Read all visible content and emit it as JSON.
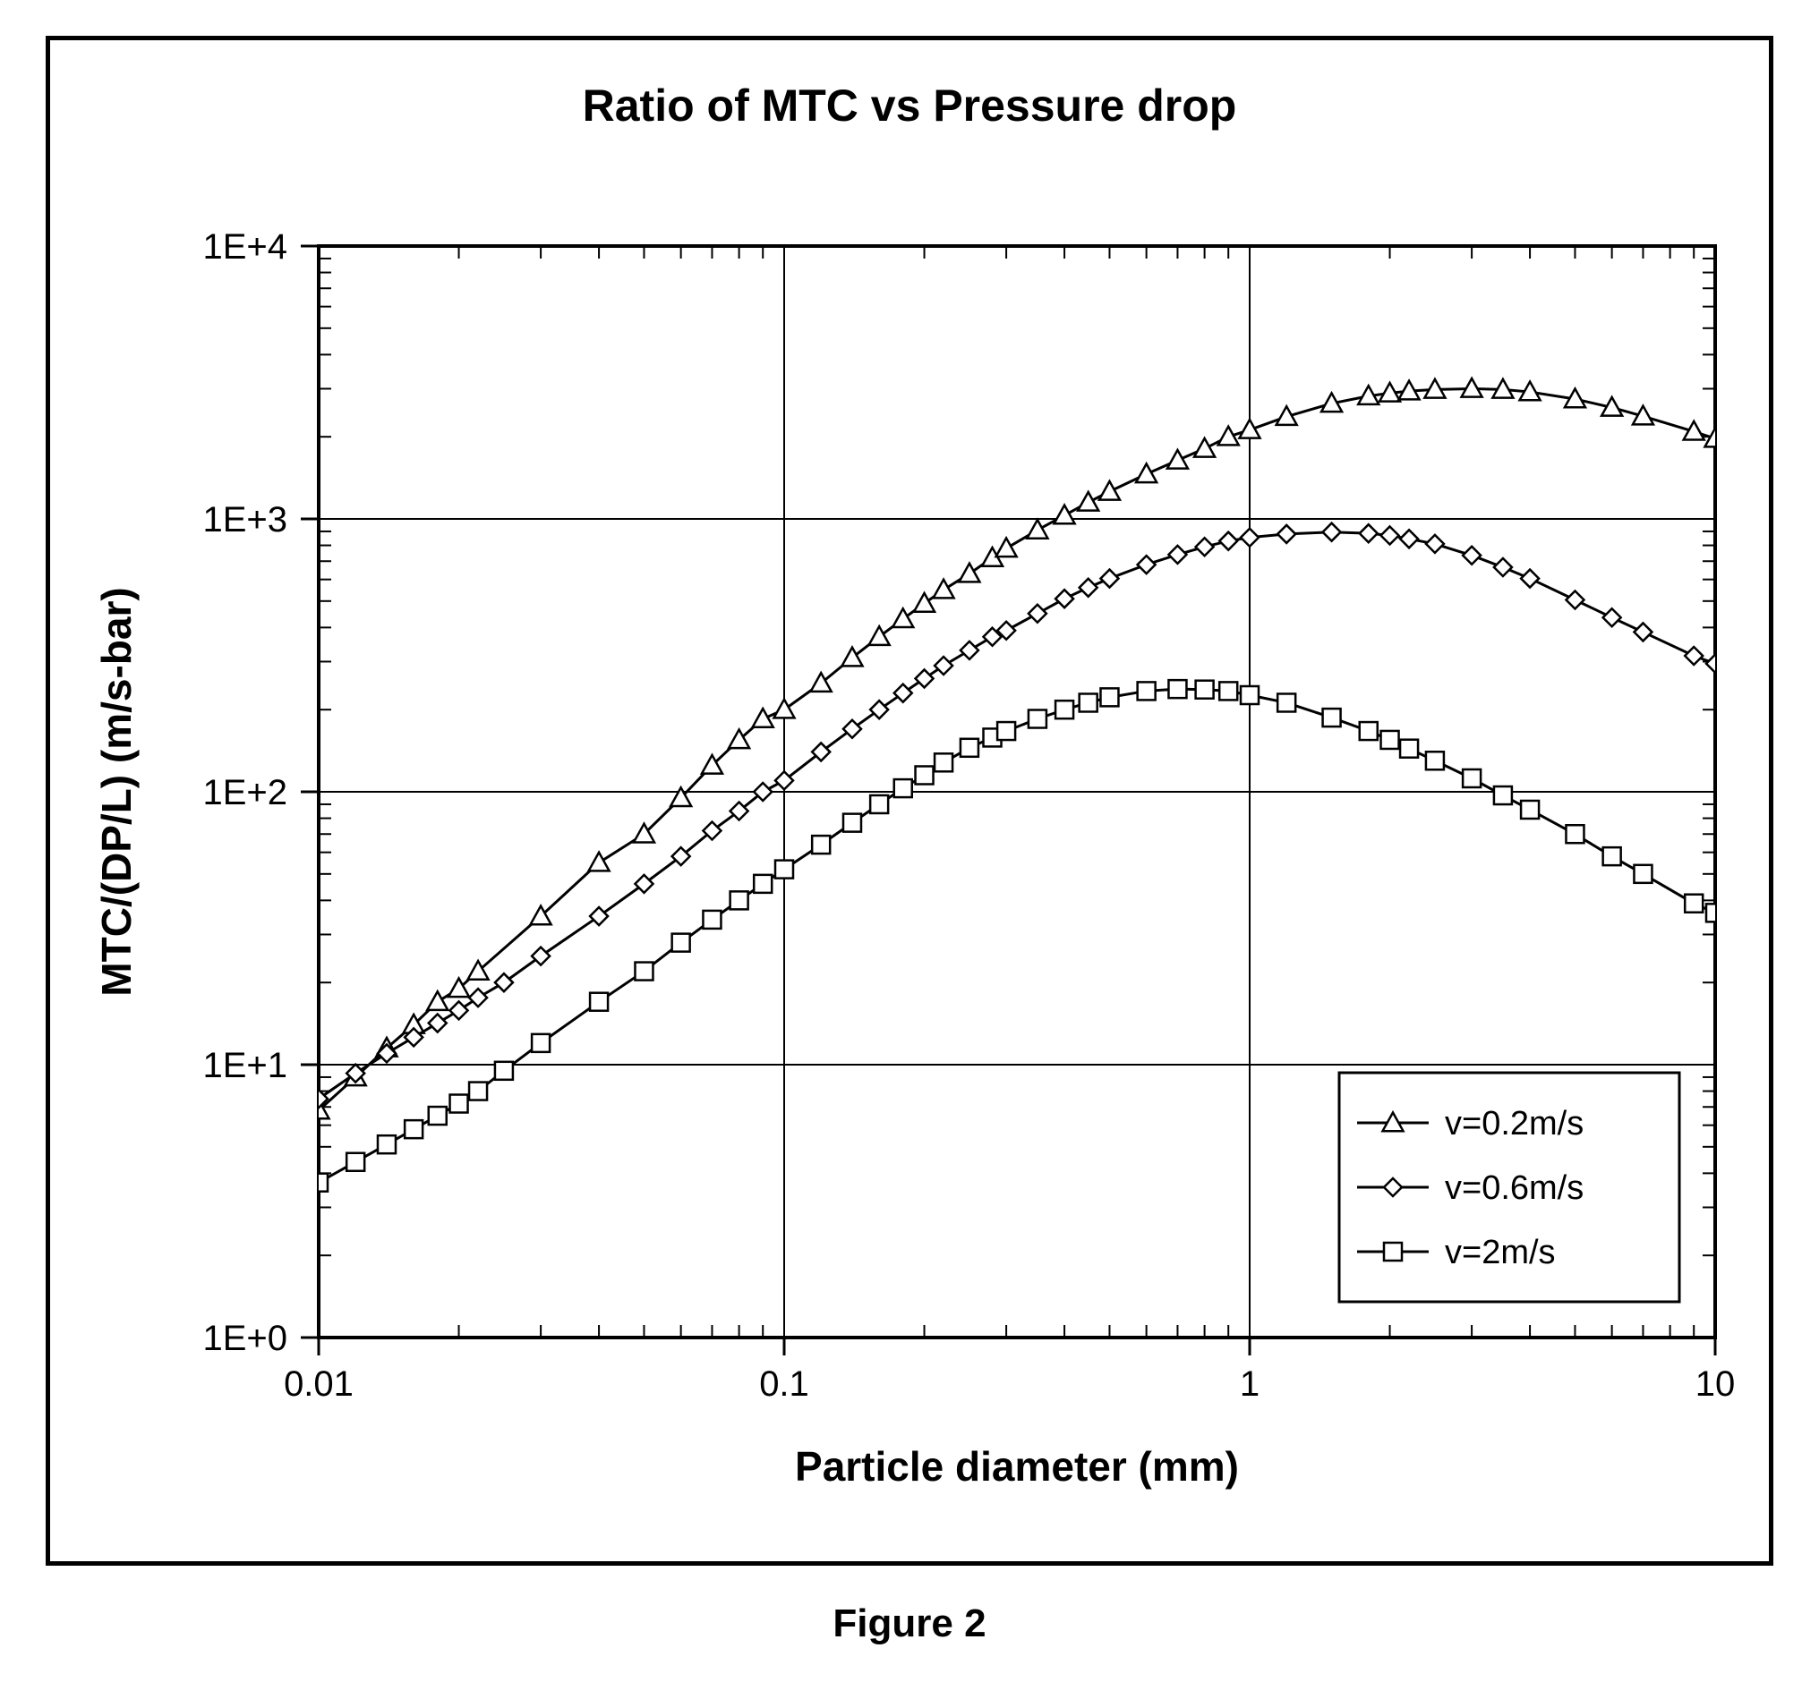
{
  "chart": {
    "type": "line-scatter-loglog",
    "title": "Ratio of MTC vs Pressure drop",
    "title_fontsize": 50,
    "title_fontweight": "bold",
    "xlabel": "Particle diameter (mm)",
    "ylabel": "MTC/(DP/L) (m/s-bar)",
    "axis_label_fontsize": 46,
    "axis_label_fontweight": "bold",
    "tick_fontsize": 40,
    "background_color": "#ffffff",
    "plot_border_color": "#000000",
    "grid_color": "#000000",
    "line_color": "#000000",
    "line_width": 3,
    "marker_size": 10,
    "marker_fill": "#ffffff",
    "marker_stroke": "#000000",
    "x_log_min": -2,
    "x_log_max": 1,
    "y_log_min": 0,
    "y_log_max": 4,
    "x_tick_labels": [
      "0.01",
      "0.1",
      "1",
      "10"
    ],
    "y_tick_labels": [
      "1E+0",
      "1E+1",
      "1E+2",
      "1E+3",
      "1E+4"
    ],
    "legend": {
      "border_color": "#000000",
      "background": "#ffffff",
      "fontsize": 38,
      "position": "lower-right",
      "items": [
        {
          "label": "v=0.2m/s",
          "marker": "triangle"
        },
        {
          "label": "v=0.6m/s",
          "marker": "diamond"
        },
        {
          "label": "v=2m/s",
          "marker": "square"
        }
      ]
    },
    "series": [
      {
        "name": "v=0.2m/s",
        "marker": "triangle",
        "points": [
          {
            "x": 0.01,
            "y": 6.8
          },
          {
            "x": 0.012,
            "y": 9.0
          },
          {
            "x": 0.014,
            "y": 11.5
          },
          {
            "x": 0.016,
            "y": 14
          },
          {
            "x": 0.018,
            "y": 17
          },
          {
            "x": 0.02,
            "y": 19
          },
          {
            "x": 0.022,
            "y": 22
          },
          {
            "x": 0.03,
            "y": 35
          },
          {
            "x": 0.04,
            "y": 55
          },
          {
            "x": 0.05,
            "y": 70
          },
          {
            "x": 0.06,
            "y": 95
          },
          {
            "x": 0.07,
            "y": 125
          },
          {
            "x": 0.08,
            "y": 155
          },
          {
            "x": 0.09,
            "y": 185
          },
          {
            "x": 0.1,
            "y": 200
          },
          {
            "x": 0.12,
            "y": 250
          },
          {
            "x": 0.14,
            "y": 310
          },
          {
            "x": 0.16,
            "y": 370
          },
          {
            "x": 0.18,
            "y": 430
          },
          {
            "x": 0.2,
            "y": 490
          },
          {
            "x": 0.22,
            "y": 550
          },
          {
            "x": 0.25,
            "y": 630
          },
          {
            "x": 0.28,
            "y": 720
          },
          {
            "x": 0.3,
            "y": 780
          },
          {
            "x": 0.35,
            "y": 910
          },
          {
            "x": 0.4,
            "y": 1030
          },
          {
            "x": 0.45,
            "y": 1150
          },
          {
            "x": 0.5,
            "y": 1260
          },
          {
            "x": 0.6,
            "y": 1460
          },
          {
            "x": 0.7,
            "y": 1640
          },
          {
            "x": 0.8,
            "y": 1810
          },
          {
            "x": 0.9,
            "y": 2000
          },
          {
            "x": 1.0,
            "y": 2120
          },
          {
            "x": 1.2,
            "y": 2370
          },
          {
            "x": 1.5,
            "y": 2650
          },
          {
            "x": 1.8,
            "y": 2820
          },
          {
            "x": 2.0,
            "y": 2890
          },
          {
            "x": 2.2,
            "y": 2940
          },
          {
            "x": 2.5,
            "y": 2980
          },
          {
            "x": 3.0,
            "y": 3000
          },
          {
            "x": 3.5,
            "y": 2980
          },
          {
            "x": 4.0,
            "y": 2920
          },
          {
            "x": 5.0,
            "y": 2750
          },
          {
            "x": 6.0,
            "y": 2560
          },
          {
            "x": 7.0,
            "y": 2380
          },
          {
            "x": 9.0,
            "y": 2090
          },
          {
            "x": 10.0,
            "y": 1970
          }
        ]
      },
      {
        "name": "v=0.6m/s",
        "marker": "diamond",
        "points": [
          {
            "x": 0.01,
            "y": 7.5
          },
          {
            "x": 0.012,
            "y": 9.3
          },
          {
            "x": 0.014,
            "y": 11
          },
          {
            "x": 0.016,
            "y": 12.6
          },
          {
            "x": 0.018,
            "y": 14.2
          },
          {
            "x": 0.02,
            "y": 15.8
          },
          {
            "x": 0.022,
            "y": 17.6
          },
          {
            "x": 0.025,
            "y": 20
          },
          {
            "x": 0.03,
            "y": 25
          },
          {
            "x": 0.04,
            "y": 35
          },
          {
            "x": 0.05,
            "y": 46
          },
          {
            "x": 0.06,
            "y": 58
          },
          {
            "x": 0.07,
            "y": 72
          },
          {
            "x": 0.08,
            "y": 85
          },
          {
            "x": 0.09,
            "y": 100
          },
          {
            "x": 0.1,
            "y": 110
          },
          {
            "x": 0.12,
            "y": 140
          },
          {
            "x": 0.14,
            "y": 170
          },
          {
            "x": 0.16,
            "y": 200
          },
          {
            "x": 0.18,
            "y": 230
          },
          {
            "x": 0.2,
            "y": 260
          },
          {
            "x": 0.22,
            "y": 290
          },
          {
            "x": 0.25,
            "y": 330
          },
          {
            "x": 0.28,
            "y": 370
          },
          {
            "x": 0.3,
            "y": 390
          },
          {
            "x": 0.35,
            "y": 450
          },
          {
            "x": 0.4,
            "y": 510
          },
          {
            "x": 0.45,
            "y": 560
          },
          {
            "x": 0.5,
            "y": 605
          },
          {
            "x": 0.6,
            "y": 680
          },
          {
            "x": 0.7,
            "y": 740
          },
          {
            "x": 0.8,
            "y": 790
          },
          {
            "x": 0.9,
            "y": 830
          },
          {
            "x": 1.0,
            "y": 855
          },
          {
            "x": 1.2,
            "y": 880
          },
          {
            "x": 1.5,
            "y": 895
          },
          {
            "x": 1.8,
            "y": 885
          },
          {
            "x": 2.0,
            "y": 870
          },
          {
            "x": 2.2,
            "y": 845
          },
          {
            "x": 2.5,
            "y": 810
          },
          {
            "x": 3.0,
            "y": 735
          },
          {
            "x": 3.5,
            "y": 665
          },
          {
            "x": 4.0,
            "y": 605
          },
          {
            "x": 5.0,
            "y": 505
          },
          {
            "x": 6.0,
            "y": 435
          },
          {
            "x": 7.0,
            "y": 385
          },
          {
            "x": 9.0,
            "y": 315
          },
          {
            "x": 10.0,
            "y": 295
          }
        ]
      },
      {
        "name": "v=2m/s",
        "marker": "square",
        "points": [
          {
            "x": 0.01,
            "y": 3.7
          },
          {
            "x": 0.012,
            "y": 4.4
          },
          {
            "x": 0.014,
            "y": 5.1
          },
          {
            "x": 0.016,
            "y": 5.8
          },
          {
            "x": 0.018,
            "y": 6.5
          },
          {
            "x": 0.02,
            "y": 7.2
          },
          {
            "x": 0.022,
            "y": 8.0
          },
          {
            "x": 0.025,
            "y": 9.5
          },
          {
            "x": 0.03,
            "y": 12
          },
          {
            "x": 0.04,
            "y": 17
          },
          {
            "x": 0.05,
            "y": 22
          },
          {
            "x": 0.06,
            "y": 28
          },
          {
            "x": 0.07,
            "y": 34
          },
          {
            "x": 0.08,
            "y": 40
          },
          {
            "x": 0.09,
            "y": 46
          },
          {
            "x": 0.1,
            "y": 52
          },
          {
            "x": 0.12,
            "y": 64
          },
          {
            "x": 0.14,
            "y": 77
          },
          {
            "x": 0.16,
            "y": 90
          },
          {
            "x": 0.18,
            "y": 103
          },
          {
            "x": 0.2,
            "y": 115
          },
          {
            "x": 0.22,
            "y": 128
          },
          {
            "x": 0.25,
            "y": 145
          },
          {
            "x": 0.28,
            "y": 158
          },
          {
            "x": 0.3,
            "y": 167
          },
          {
            "x": 0.35,
            "y": 185
          },
          {
            "x": 0.4,
            "y": 200
          },
          {
            "x": 0.45,
            "y": 212
          },
          {
            "x": 0.5,
            "y": 222
          },
          {
            "x": 0.6,
            "y": 234
          },
          {
            "x": 0.7,
            "y": 238
          },
          {
            "x": 0.8,
            "y": 237
          },
          {
            "x": 0.9,
            "y": 234
          },
          {
            "x": 1.0,
            "y": 226
          },
          {
            "x": 1.2,
            "y": 212
          },
          {
            "x": 1.5,
            "y": 187
          },
          {
            "x": 1.8,
            "y": 167
          },
          {
            "x": 2.0,
            "y": 155
          },
          {
            "x": 2.2,
            "y": 144
          },
          {
            "x": 2.5,
            "y": 130
          },
          {
            "x": 3.0,
            "y": 112
          },
          {
            "x": 3.5,
            "y": 97
          },
          {
            "x": 4.0,
            "y": 86
          },
          {
            "x": 5.0,
            "y": 70
          },
          {
            "x": 6.0,
            "y": 58
          },
          {
            "x": 7.0,
            "y": 50
          },
          {
            "x": 9.0,
            "y": 39
          },
          {
            "x": 10.0,
            "y": 36
          }
        ]
      }
    ]
  },
  "caption": "Figure 2"
}
